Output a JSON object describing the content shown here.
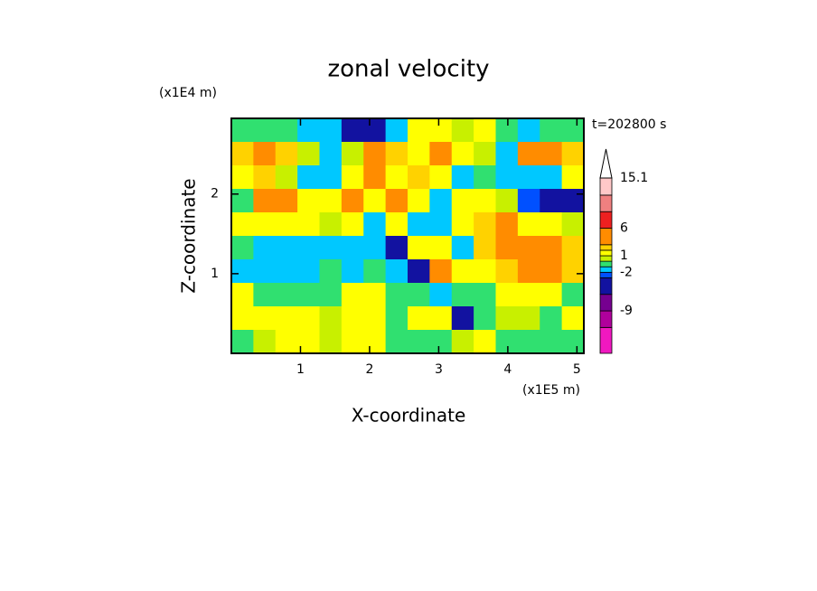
{
  "chart_data": {
    "type": "contour",
    "title": "zonal velocity",
    "x_label": "X-coordinate",
    "y_label": "Z-coordinate",
    "x_scale_label": "(x1E5 m)",
    "y_scale_label": "(x1E4 m)",
    "annotation": "t=202800 s",
    "xlim": [
      0,
      5.1
    ],
    "ylim": [
      0,
      2.95
    ],
    "xticks": [
      1,
      2,
      3,
      4,
      5
    ],
    "yticks": [
      1,
      2
    ],
    "levels": [
      -16.7,
      -12,
      -9,
      -6,
      -3,
      -2,
      -1,
      0,
      1,
      2,
      3,
      6,
      9,
      12,
      15.1
    ],
    "level_colors": [
      "#f018c0",
      "#b0009c",
      "#760090",
      "#1212a0",
      "#0050ff",
      "#00c8ff",
      "#30e070",
      "#c8f000",
      "#ffff00",
      "#ffd200",
      "#ff8c00",
      "#ee2020",
      "#f08080",
      "#ffc8c8"
    ],
    "extend_color": "#ffffff",
    "colorbar_ticks": [
      15.1,
      6,
      1,
      -2,
      -9
    ],
    "z": [
      [
        -0.5,
        -0.5,
        -0.5,
        -1.5,
        -1.5,
        -4,
        -5,
        -2,
        1.5,
        1.5,
        0.5,
        1.5,
        -0.5,
        -1.5,
        -0.5,
        -0.5
      ],
      [
        2,
        3.5,
        2,
        0.5,
        -1.5,
        0.5,
        3.5,
        2.5,
        1.5,
        3.5,
        1.5,
        0.5,
        -1.5,
        3.5,
        4,
        2
      ],
      [
        1.5,
        2.5,
        0.5,
        -1.5,
        -1.5,
        1.5,
        3.5,
        1.5,
        2.5,
        1.5,
        -2,
        -1,
        -1.5,
        -1.5,
        -1.5,
        1.5
      ],
      [
        -0.5,
        3.5,
        3.5,
        1.5,
        1.5,
        3.5,
        1.5,
        4,
        1.5,
        -2,
        1.5,
        1.5,
        0.5,
        -2.5,
        -5,
        -4
      ],
      [
        1.5,
        1.5,
        1.5,
        1.5,
        0.5,
        1.5,
        -1.5,
        1.5,
        -1.5,
        -1.5,
        1.5,
        2.5,
        3.5,
        1.5,
        1.5,
        0.5
      ],
      [
        -0.5,
        -1.5,
        -1.5,
        -1.5,
        -1.5,
        -1.5,
        -1.5,
        -5,
        1.5,
        1.5,
        -1.5,
        2.5,
        3.5,
        3.5,
        3.5,
        2.5
      ],
      [
        -1.5,
        -2,
        -2,
        -1.5,
        -0.5,
        -1.5,
        -0.5,
        -1.5,
        -5,
        3.5,
        1.5,
        1.5,
        2.5,
        3.5,
        3.5,
        2.5
      ],
      [
        1.5,
        -0.5,
        -0.5,
        -0.5,
        -0.5,
        1.5,
        1.5,
        -0.5,
        -0.5,
        -1.5,
        -0.5,
        -0.5,
        1.5,
        1.5,
        1.5,
        -0.5
      ],
      [
        1.5,
        1.5,
        1.5,
        1.5,
        0.5,
        1.5,
        1.5,
        -0.5,
        1.5,
        1.5,
        -5,
        -0.5,
        0.5,
        0.5,
        -0.5,
        1.5
      ],
      [
        -0.5,
        0.5,
        1.5,
        1.5,
        0.5,
        1.5,
        1.5,
        -0.5,
        -0.5,
        -0.5,
        0.5,
        1.5,
        -0.5,
        -0.5,
        -0.5,
        -0.5
      ]
    ]
  }
}
